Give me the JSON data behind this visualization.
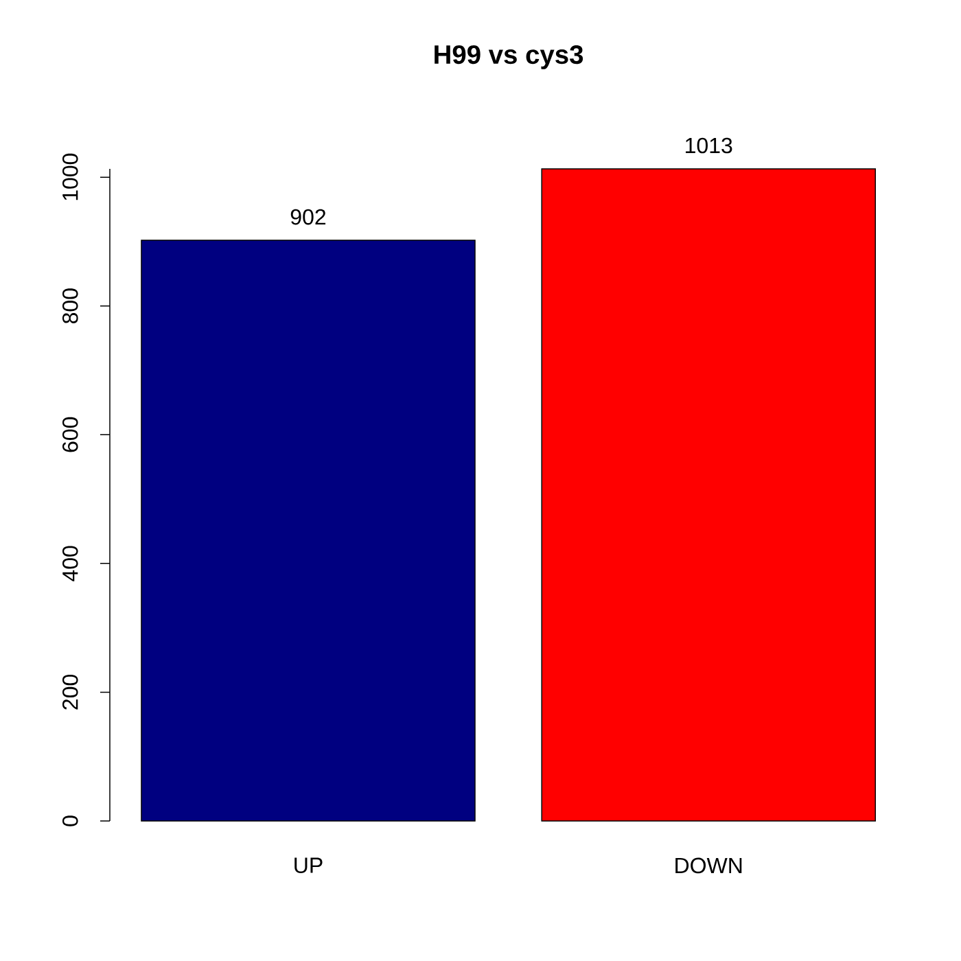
{
  "chart_data": {
    "type": "bar",
    "title": "H99 vs cys3",
    "categories": [
      "UP",
      "DOWN"
    ],
    "values": [
      902,
      1013
    ],
    "colors": [
      "#000080",
      "#ff0000"
    ],
    "ylim": [
      0,
      1013
    ],
    "yticks": [
      0,
      200,
      400,
      600,
      800,
      1000
    ],
    "data_labels": true
  }
}
